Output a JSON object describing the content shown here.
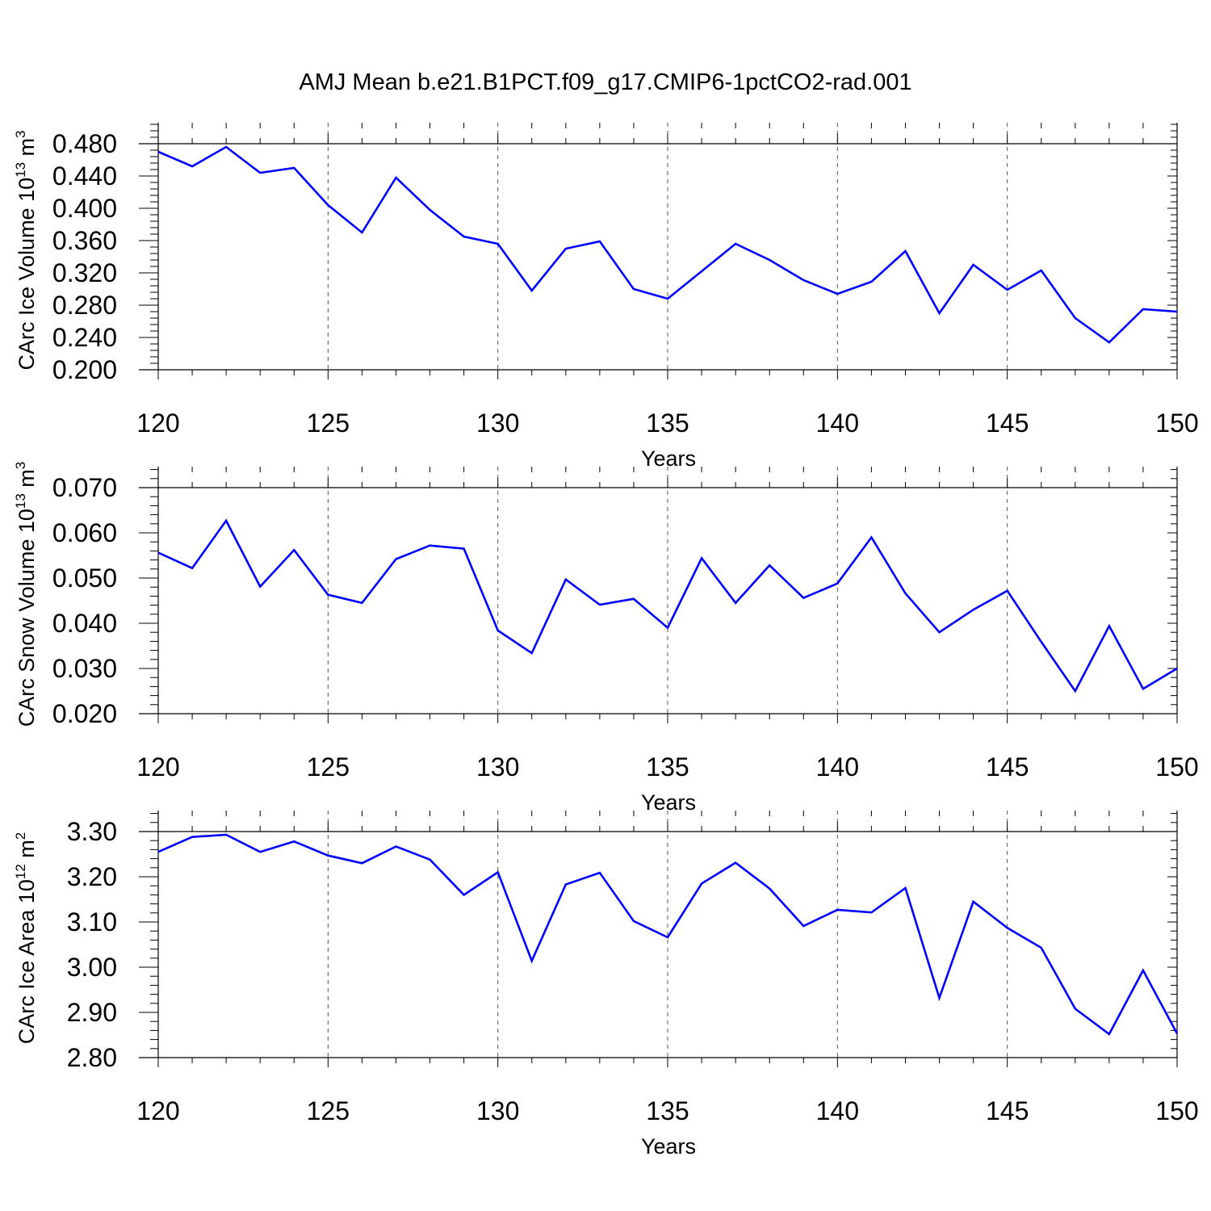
{
  "title": "AMJ Mean b.e21.B1PCT.f09_g17.CMIP6-1pctCO2-rad.001",
  "colors": {
    "line": "#0000ff",
    "axis": "#000000",
    "grid": "#555555"
  },
  "chart_data": [
    {
      "type": "line",
      "xlabel": "Years",
      "ylabel_parts": [
        "CArc Ice Volume 10",
        "13",
        " m",
        "3"
      ],
      "ylim": [
        0.2,
        0.48
      ],
      "yticks": [
        0.2,
        0.24,
        0.28,
        0.32,
        0.36,
        0.4,
        0.44,
        0.48
      ],
      "ytick_labels": [
        "0.200",
        "0.240",
        "0.280",
        "0.320",
        "0.360",
        "0.400",
        "0.440",
        "0.480"
      ],
      "xlim": [
        120,
        150
      ],
      "xticks": [
        120,
        125,
        130,
        135,
        140,
        145,
        150
      ],
      "xtick_labels": [
        "120",
        "125",
        "130",
        "135",
        "140",
        "145",
        "150"
      ],
      "x": [
        120,
        121,
        122,
        123,
        124,
        125,
        126,
        127,
        128,
        129,
        130,
        131,
        132,
        133,
        134,
        135,
        136,
        137,
        138,
        139,
        140,
        141,
        142,
        143,
        144,
        145,
        146,
        147,
        148,
        149,
        150
      ],
      "values": [
        0.47,
        0.452,
        0.476,
        0.444,
        0.45,
        0.404,
        0.37,
        0.438,
        0.398,
        0.365,
        0.356,
        0.298,
        0.35,
        0.359,
        0.3,
        0.288,
        0.322,
        0.356,
        0.336,
        0.311,
        0.294,
        0.309,
        0.347,
        0.27,
        0.33,
        0.299,
        0.323,
        0.264,
        0.234,
        0.275,
        0.272
      ]
    },
    {
      "type": "line",
      "xlabel": "Years",
      "ylabel_parts": [
        "CArc Snow Volume 10",
        "13",
        " m",
        "3"
      ],
      "ylim": [
        0.02,
        0.07
      ],
      "yticks": [
        0.02,
        0.03,
        0.04,
        0.05,
        0.06,
        0.07
      ],
      "ytick_labels": [
        "0.020",
        "0.030",
        "0.040",
        "0.050",
        "0.060",
        "0.070"
      ],
      "xlim": [
        120,
        150
      ],
      "xticks": [
        120,
        125,
        130,
        135,
        140,
        145,
        150
      ],
      "xtick_labels": [
        "120",
        "125",
        "130",
        "135",
        "140",
        "145",
        "150"
      ],
      "x": [
        120,
        121,
        122,
        123,
        124,
        125,
        126,
        127,
        128,
        129,
        130,
        131,
        132,
        133,
        134,
        135,
        136,
        137,
        138,
        139,
        140,
        141,
        142,
        143,
        144,
        145,
        146,
        147,
        148,
        149,
        150
      ],
      "values": [
        0.0556,
        0.0522,
        0.0627,
        0.0481,
        0.0562,
        0.0463,
        0.0445,
        0.0542,
        0.0572,
        0.0565,
        0.0384,
        0.0334,
        0.0497,
        0.0441,
        0.0454,
        0.039,
        0.0544,
        0.0445,
        0.0528,
        0.0456,
        0.0488,
        0.059,
        0.0466,
        0.038,
        0.043,
        0.0472,
        0.0359,
        0.025,
        0.0394,
        0.0255,
        0.03
      ]
    },
    {
      "type": "line",
      "xlabel": "Years",
      "ylabel_parts": [
        "CArc Ice Area 10",
        "12",
        " m",
        "2"
      ],
      "ylim": [
        2.8,
        3.3
      ],
      "yticks": [
        2.8,
        2.9,
        3.0,
        3.1,
        3.2,
        3.3
      ],
      "ytick_labels": [
        "2.80",
        "2.90",
        "3.00",
        "3.10",
        "3.20",
        "3.30"
      ],
      "xlim": [
        120,
        150
      ],
      "xticks": [
        120,
        125,
        130,
        135,
        140,
        145,
        150
      ],
      "xtick_labels": [
        "120",
        "125",
        "130",
        "135",
        "140",
        "145",
        "150"
      ],
      "x": [
        120,
        121,
        122,
        123,
        124,
        125,
        126,
        127,
        128,
        129,
        130,
        131,
        132,
        133,
        134,
        135,
        136,
        137,
        138,
        139,
        140,
        141,
        142,
        143,
        144,
        145,
        146,
        147,
        148,
        149,
        150
      ],
      "values": [
        3.255,
        3.288,
        3.293,
        3.255,
        3.278,
        3.247,
        3.23,
        3.267,
        3.238,
        3.16,
        3.21,
        3.014,
        3.183,
        3.209,
        3.102,
        3.066,
        3.185,
        3.231,
        3.174,
        3.091,
        3.127,
        3.121,
        3.175,
        2.932,
        3.145,
        3.087,
        3.043,
        2.908,
        2.852,
        2.993,
        2.853
      ]
    }
  ]
}
